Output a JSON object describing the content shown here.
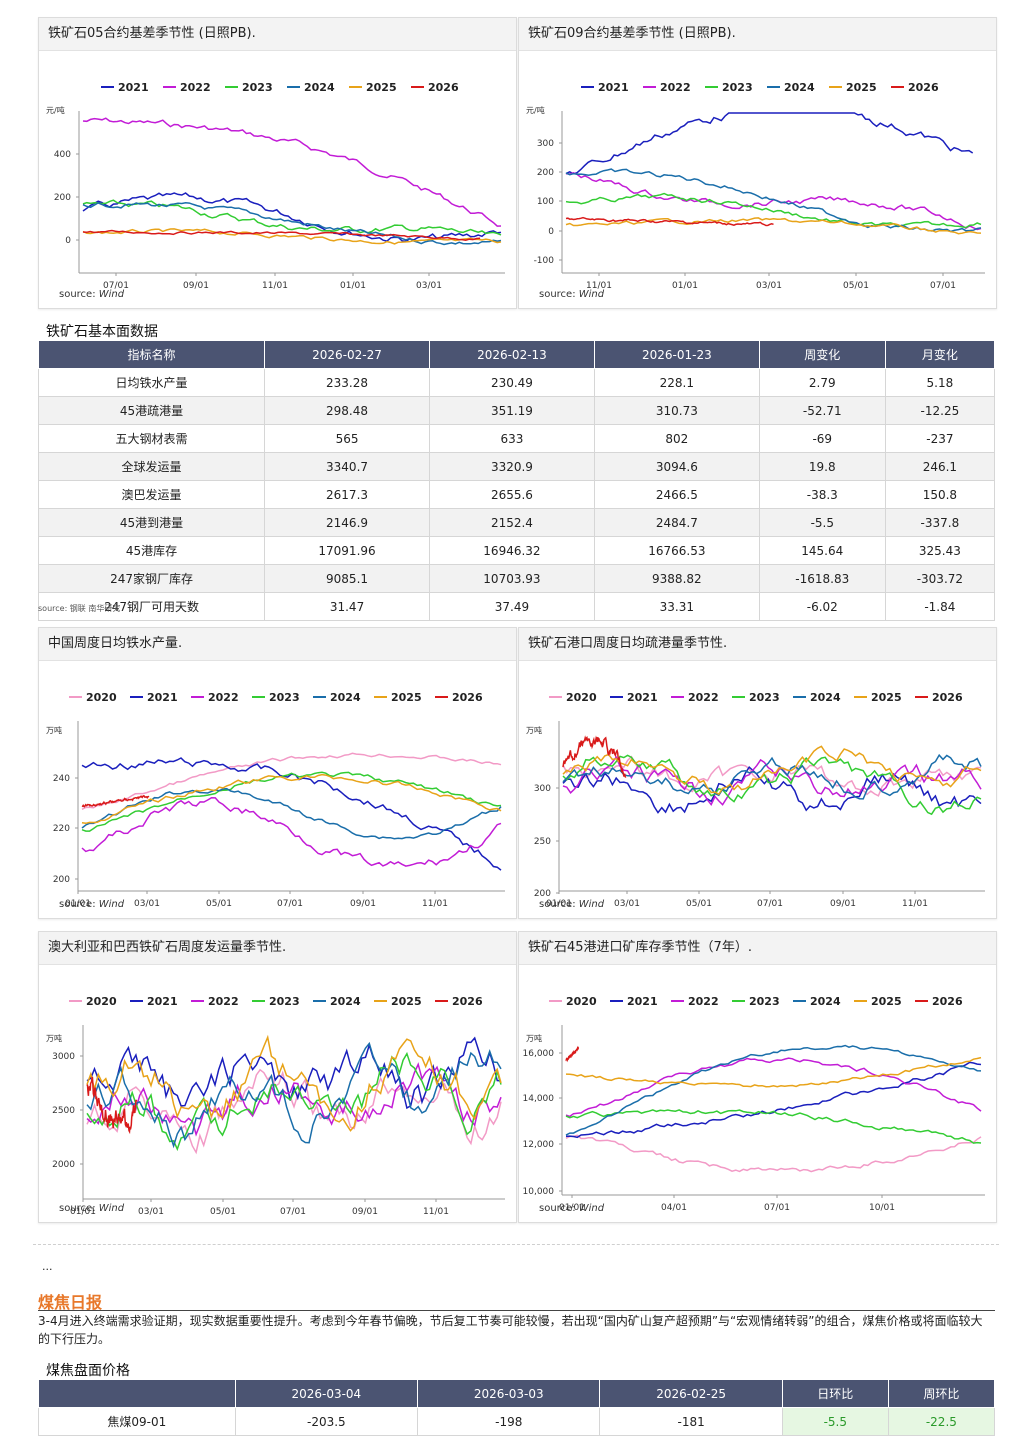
{
  "colors": {
    "2020": "#f29ac6",
    "2021": "#1a1fbd",
    "2022": "#c21cd6",
    "2023": "#33cc33",
    "2024": "#1a6eaa",
    "2025": "#e8a319",
    "2026": "#d91a1a"
  },
  "charts": [
    {
      "title": "铁矿石05合约基差季节性 (日照PB).",
      "unit": "元/吨",
      "legend": [
        "2021",
        "2022",
        "2023",
        "2024",
        "2025",
        "2026"
      ],
      "yticks": [
        "400",
        "200",
        "0"
      ],
      "xticks": [
        "07/01",
        "09/01",
        "11/01",
        "01/01",
        "03/01"
      ],
      "source_label": "source:",
      "source_name": "Wind"
    },
    {
      "title": "铁矿石09合约基差季节性 (日照PB).",
      "unit": "元/吨",
      "legend": [
        "2021",
        "2022",
        "2023",
        "2024",
        "2025",
        "2026"
      ],
      "yticks": [
        "300",
        "200",
        "100",
        "0",
        "-100"
      ],
      "xticks": [
        "11/01",
        "01/01",
        "03/01",
        "05/01",
        "07/01"
      ],
      "source_label": "source:",
      "source_name": "Wind"
    },
    {
      "title": "中国周度日均铁水产量.",
      "unit": "万吨",
      "legend": [
        "2020",
        "2021",
        "2022",
        "2023",
        "2024",
        "2025",
        "2026"
      ],
      "yticks": [
        "240",
        "220",
        "200"
      ],
      "xticks": [
        "01/01",
        "03/01",
        "05/01",
        "07/01",
        "09/01",
        "11/01"
      ],
      "source_label": "source:",
      "source_name": "Wind"
    },
    {
      "title": "铁矿石港口周度日均疏港量季节性.",
      "unit": "万吨",
      "legend": [
        "2020",
        "2021",
        "2022",
        "2023",
        "2024",
        "2025",
        "2026"
      ],
      "yticks": [
        "300",
        "250",
        "200"
      ],
      "xticks": [
        "01/01",
        "03/01",
        "05/01",
        "07/01",
        "09/01",
        "11/01"
      ],
      "source_label": "source:",
      "source_name": "Wind"
    },
    {
      "title": "澳大利亚和巴西铁矿石周度发运量季节性.",
      "unit": "万吨",
      "legend": [
        "2020",
        "2021",
        "2022",
        "2023",
        "2024",
        "2025",
        "2026"
      ],
      "yticks": [
        "3000",
        "2500",
        "2000"
      ],
      "xticks": [
        "01/01",
        "03/01",
        "05/01",
        "07/01",
        "09/01",
        "11/01"
      ],
      "source_label": "source:",
      "source_name": "Wind"
    },
    {
      "title": "铁矿石45港进口矿库存季节性（7年）.",
      "unit": "万吨",
      "legend": [
        "2020",
        "2021",
        "2022",
        "2023",
        "2024",
        "2025",
        "2026"
      ],
      "yticks": [
        "16,000",
        "14,000",
        "12,000",
        "10,000"
      ],
      "xticks": [
        "01/01",
        "04/01",
        "07/01",
        "10/01"
      ],
      "source_label": "source:",
      "source_name": "Wind"
    }
  ],
  "fundamentals": {
    "title": "铁矿石基本面数据",
    "headers": [
      "指标名称",
      "2026-02-27",
      "2026-02-13",
      "2026-01-23",
      "周变化",
      "月变化"
    ],
    "rows": [
      [
        "日均铁水产量",
        "233.28",
        "230.49",
        "228.1",
        "2.79",
        "5.18"
      ],
      [
        "45港疏港量",
        "298.48",
        "351.19",
        "310.73",
        "-52.71",
        "-12.25"
      ],
      [
        "五大钢材表需",
        "565",
        "633",
        "802",
        "-69",
        "-237"
      ],
      [
        "全球发运量",
        "3340.7",
        "3320.9",
        "3094.6",
        "19.8",
        "246.1"
      ],
      [
        "澳巴发运量",
        "2617.3",
        "2655.6",
        "2466.5",
        "-38.3",
        "150.8"
      ],
      [
        "45港到港量",
        "2146.9",
        "2152.4",
        "2484.7",
        "-5.5",
        "-337.8"
      ],
      [
        "45港库存",
        "17091.96",
        "16946.32",
        "16766.53",
        "145.64",
        "325.43"
      ],
      [
        "247家钢厂库存",
        "9085.1",
        "10703.93",
        "9388.82",
        "-1618.83",
        "-303.72"
      ],
      [
        "247钢厂可用天数",
        "31.47",
        "37.49",
        "33.31",
        "-6.02",
        "-1.84"
      ]
    ],
    "source": "source: 钢联 南华研究"
  },
  "ellipsis": "...",
  "coke": {
    "title": "煤焦日报",
    "paragraph": "3-4月进入终端需求验证期，现实数据重要性提升。考虑到今年春节偏晚，节后复工节奏可能较慢，若出现“国内矿山复产超预期”与“宏观情绪转弱”的组合，煤焦价格或将面临较大的下行压力。",
    "table_title": "煤焦盘面价格",
    "headers": [
      "",
      "2026-03-04",
      "2026-03-03",
      "2026-02-25",
      "日环比",
      "周环比"
    ],
    "rows": [
      [
        "焦煤09-01",
        "-203.5",
        "-198",
        "-181",
        "-5.5",
        "-22.5"
      ]
    ]
  }
}
